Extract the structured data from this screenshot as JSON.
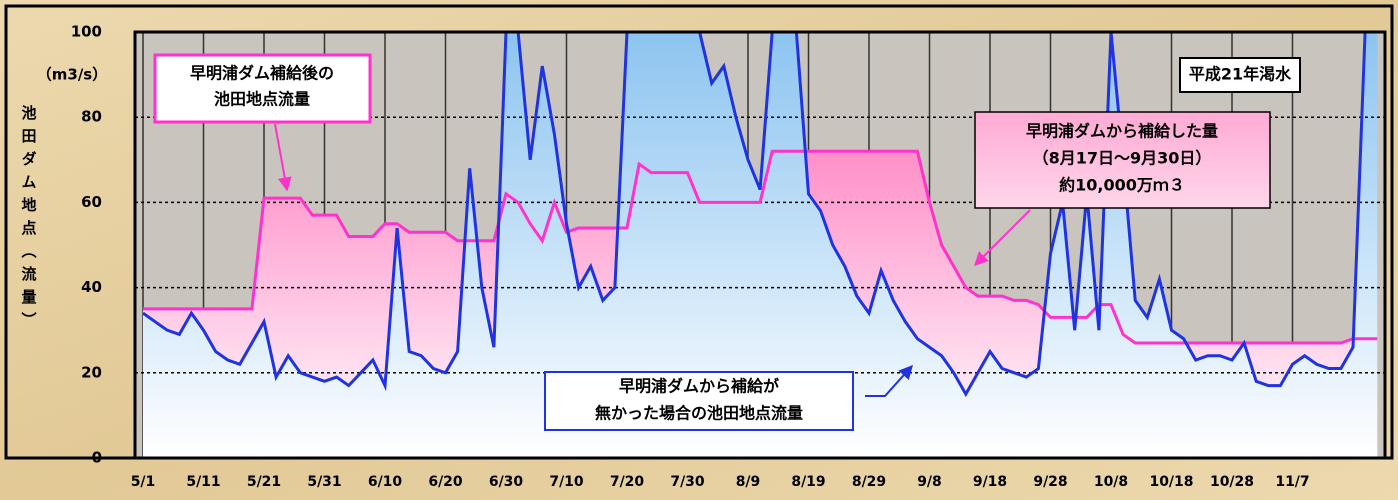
{
  "chart_data": {
    "type": "line",
    "y_label": "池田ダム地点（流量）",
    "y_unit": "（m3/s）",
    "annotations": [
      {
        "lines": [
          "平成21年渇水"
        ]
      },
      {
        "lines": [
          "早明浦ダム補給後の",
          "池田地点流量"
        ]
      },
      {
        "lines": [
          "早明浦ダムから補給した量",
          "（8月17日～9月30日）",
          "約10,000万ｍ３"
        ]
      },
      {
        "lines": [
          "早明浦ダムから補給が",
          "無かった場合の池田地点流量"
        ]
      }
    ],
    "categories": [
      "5/1",
      null,
      null,
      null,
      null,
      "5/11",
      null,
      null,
      null,
      null,
      "5/21",
      null,
      null,
      null,
      null,
      "5/31",
      null,
      null,
      null,
      null,
      "6/10",
      null,
      null,
      null,
      null,
      "6/20",
      null,
      null,
      null,
      null,
      "6/30",
      null,
      null,
      null,
      null,
      "7/10",
      null,
      null,
      null,
      null,
      "7/20",
      null,
      null,
      null,
      null,
      "7/30",
      null,
      null,
      null,
      null,
      "8/9",
      null,
      null,
      null,
      null,
      "8/19",
      null,
      null,
      null,
      null,
      "8/29",
      null,
      null,
      null,
      null,
      "9/8",
      null,
      null,
      null,
      null,
      "9/18",
      null,
      null,
      null,
      null,
      "9/28",
      null,
      null,
      null,
      null,
      "10/8",
      null,
      null,
      null,
      null,
      "10/18",
      null,
      null,
      null,
      null,
      "10/28",
      null,
      null,
      null,
      null,
      "11/7",
      null,
      null,
      null,
      null,
      null,
      null,
      null
    ],
    "series": [
      {
        "name": "早明浦ダム補給後の池田地点流量",
        "color": "#ff33cc",
        "fill": "#ff99cc",
        "values": [
          35,
          35,
          35,
          35,
          35,
          35,
          35,
          35,
          35,
          35,
          61,
          61,
          61,
          61,
          57,
          57,
          57,
          52,
          52,
          52,
          55,
          55,
          53,
          53,
          53,
          53,
          51,
          51,
          51,
          51,
          62,
          60,
          55,
          51,
          60,
          53,
          54,
          54,
          54,
          54,
          54,
          69,
          67,
          67,
          67,
          67,
          60,
          60,
          60,
          60,
          60,
          60,
          72,
          72,
          72,
          72,
          72,
          72,
          72,
          72,
          72,
          72,
          72,
          72,
          72,
          60,
          50,
          45,
          40,
          38,
          38,
          38,
          37,
          37,
          36,
          33,
          33,
          33,
          33,
          36,
          36,
          29,
          27,
          27,
          27,
          27,
          27,
          27,
          27,
          27,
          27,
          27,
          27,
          27,
          27,
          27,
          27,
          27,
          27,
          27,
          28,
          28,
          28
        ]
      },
      {
        "name": "早明浦ダムから補給が無かった場合の池田地点流量",
        "color": "#1f33e0",
        "fill": "#8cc4f0",
        "values": [
          34,
          32,
          30,
          29,
          34,
          30,
          25,
          23,
          22,
          27,
          32,
          19,
          24,
          20,
          19,
          18,
          19,
          17,
          20,
          23,
          17,
          54,
          25,
          24,
          21,
          20,
          25,
          68,
          40,
          26,
          100,
          100,
          70,
          92,
          76,
          55,
          40,
          45,
          37,
          40,
          100,
          100,
          100,
          100,
          100,
          100,
          100,
          88,
          92,
          80,
          70,
          63,
          100,
          100,
          100,
          62,
          58,
          50,
          45,
          38,
          34,
          44,
          37,
          32,
          28,
          26,
          24,
          20,
          15,
          20,
          25,
          21,
          20,
          19,
          21,
          48,
          60,
          30,
          62,
          30,
          100,
          70,
          37,
          33,
          42,
          30,
          28,
          23,
          24,
          24,
          23,
          27,
          18,
          17,
          17,
          22,
          24,
          22,
          21,
          21,
          26,
          100,
          100
        ]
      }
    ],
    "ylim": [
      0,
      100
    ],
    "yticks": [
      0,
      20,
      40,
      60,
      80,
      100
    ],
    "grid": true
  }
}
